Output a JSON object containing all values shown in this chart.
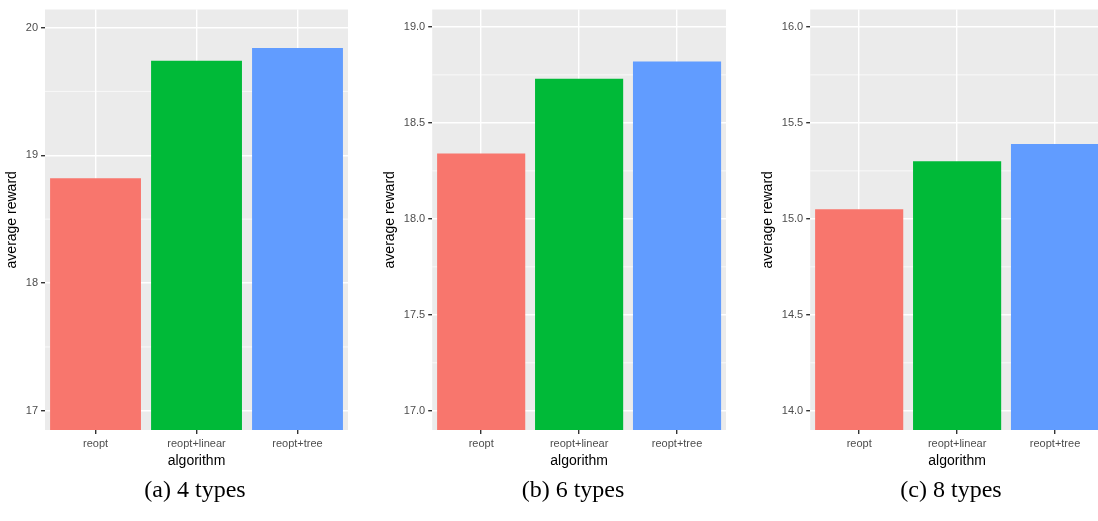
{
  "chart_data": [
    {
      "type": "bar",
      "title": "(a) 4 types",
      "xlabel": "algorithm",
      "ylabel": "average reward",
      "categories": [
        "reopt",
        "reopt+linear",
        "reopt+tree"
      ],
      "values": [
        18.82,
        19.74,
        19.84
      ],
      "colors": [
        "#f8766d",
        "#00ba38",
        "#619cff"
      ],
      "ylim": [
        16.85,
        20.14
      ],
      "yticks": [
        17,
        18,
        19,
        20
      ],
      "grid": true
    },
    {
      "type": "bar",
      "title": "(b) 6 types",
      "xlabel": "algorithm",
      "ylabel": "average reward",
      "categories": [
        "reopt",
        "reopt+linear",
        "reopt+tree"
      ],
      "values": [
        18.34,
        18.73,
        18.82
      ],
      "colors": [
        "#f8766d",
        "#00ba38",
        "#619cff"
      ],
      "ylim": [
        16.9,
        19.09
      ],
      "yticks": [
        {
          "value": 17,
          "label": "17.0"
        },
        17.5,
        {
          "value": 18,
          "label": "18.0"
        },
        18.5,
        {
          "value": 19,
          "label": "19.0"
        }
      ],
      "grid": true
    },
    {
      "type": "bar",
      "title": "(c) 8 types",
      "xlabel": "algorithm",
      "ylabel": "average reward",
      "categories": [
        "reopt",
        "reopt+linear",
        "reopt+tree"
      ],
      "values": [
        15.05,
        15.3,
        15.39
      ],
      "colors": [
        "#f8766d",
        "#00ba38",
        "#619cff"
      ],
      "ylim": [
        13.9,
        16.09
      ],
      "yticks": [
        {
          "value": 14,
          "label": "14.0"
        },
        14.5,
        {
          "value": 15,
          "label": "15.0"
        },
        15.5,
        {
          "value": 16,
          "label": "16.0"
        }
      ],
      "grid": true
    }
  ]
}
